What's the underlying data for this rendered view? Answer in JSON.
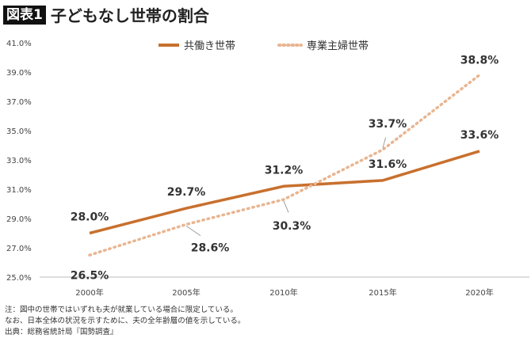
{
  "header": {
    "badge": "図表1",
    "title": "子どもなし世帯の割合"
  },
  "notes": [
    "注：図中の世帯ではいずれも夫が就業している場合に限定している。",
    "なお、日本全体の状況を示すために、夫の全年齢層の値を示している。",
    "出典：総務省統計局『国勢調査』"
  ],
  "chart_data": {
    "type": "line",
    "categories": [
      "2000年",
      "2005年",
      "2010年",
      "2015年",
      "2020年"
    ],
    "ylim": [
      25,
      41
    ],
    "yticks": [
      "25.0%",
      "27.0%",
      "29.0%",
      "31.0%",
      "33.0%",
      "35.0%",
      "37.0%",
      "39.0%",
      "41.0%"
    ],
    "grid": false,
    "legend": "top-center",
    "series": [
      {
        "name": "共働き世帯",
        "values": [
          28.0,
          29.7,
          31.2,
          31.6,
          33.6
        ],
        "labels": [
          "28.0%",
          "29.7%",
          "31.2%",
          "31.6%",
          "33.6%"
        ],
        "color": "#c8702e",
        "style": "solid"
      },
      {
        "name": "専業主婦世帯",
        "values": [
          26.5,
          28.6,
          30.3,
          33.7,
          38.8
        ],
        "labels": [
          "26.5%",
          "28.6%",
          "30.3%",
          "33.7%",
          "38.8%"
        ],
        "color": "#e9b591",
        "style": "dotted"
      }
    ]
  }
}
